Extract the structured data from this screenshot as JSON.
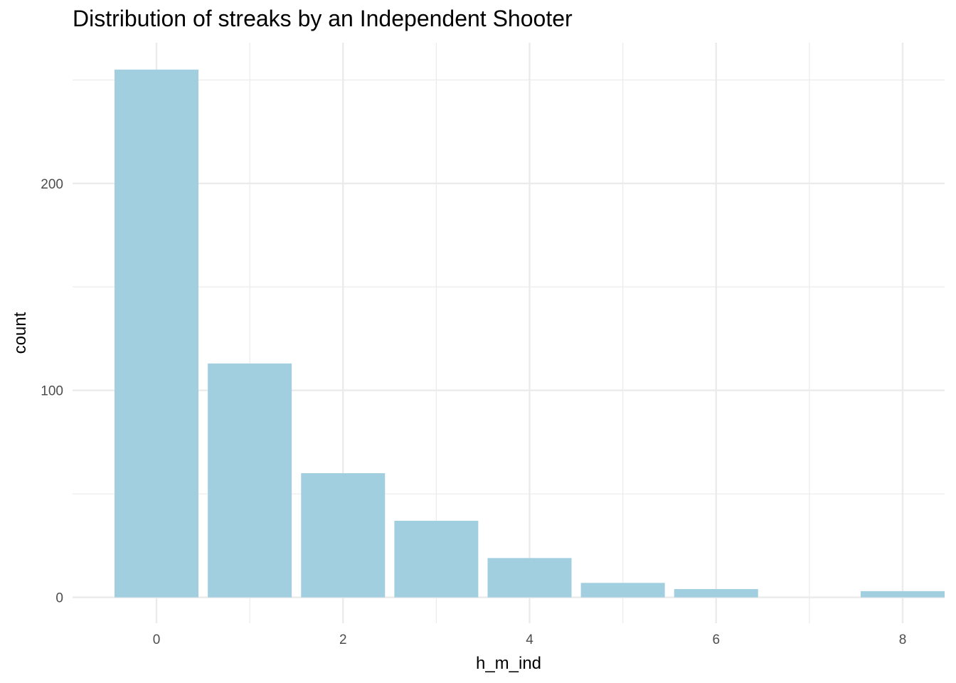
{
  "chart_data": {
    "type": "bar",
    "title": "Distribution of streaks by an Independent Shooter",
    "xlabel": "h_m_ind",
    "ylabel": "count",
    "x": [
      0,
      1,
      2,
      3,
      4,
      5,
      6,
      7,
      8
    ],
    "values": [
      255,
      113,
      60,
      37,
      19,
      7,
      4,
      0,
      3
    ],
    "xlim": [
      -0.9,
      8.45
    ],
    "ylim": [
      -12.5,
      268
    ],
    "x_ticks": [
      0,
      2,
      4,
      6,
      8
    ],
    "x_tick_labels": [
      "0",
      "2",
      "4",
      "6",
      "8"
    ],
    "y_ticks": [
      0,
      100,
      200
    ],
    "y_tick_labels": [
      "0",
      "100",
      "200"
    ],
    "bar_color": "#a2cfe0",
    "grid_color": "#ebebeb",
    "grid": true,
    "legend": "none"
  }
}
